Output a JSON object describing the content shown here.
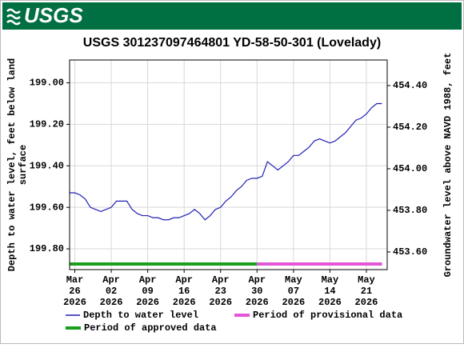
{
  "header": {
    "logo": "USGS"
  },
  "chart_data": {
    "type": "line",
    "title": "USGS 301237097464801 YD-58-50-301 (Lovelady)",
    "ylabel": [
      "Depth to water level, feet below land",
      "surface"
    ],
    "y2label": "Groundwater level above NAVD 1988, feet",
    "y_inverted": true,
    "xlim": [
      "2026-03-25",
      "2026-05-25"
    ],
    "xticks": [
      {
        "value": "2026-03-26",
        "label": [
          "Mar",
          "26",
          "2026"
        ]
      },
      {
        "value": "2026-04-02",
        "label": [
          "Apr",
          "02",
          "2026"
        ]
      },
      {
        "value": "2026-04-09",
        "label": [
          "Apr",
          "09",
          "2026"
        ]
      },
      {
        "value": "2026-04-16",
        "label": [
          "Apr",
          "16",
          "2026"
        ]
      },
      {
        "value": "2026-04-23",
        "label": [
          "Apr",
          "23",
          "2026"
        ]
      },
      {
        "value": "2026-04-30",
        "label": [
          "Apr",
          "30",
          "2026"
        ]
      },
      {
        "value": "2026-05-07",
        "label": [
          "May",
          "07",
          "2026"
        ]
      },
      {
        "value": "2026-05-14",
        "label": [
          "May",
          "14",
          "2026"
        ]
      },
      {
        "value": "2026-05-21",
        "label": [
          "May",
          "21",
          "2026"
        ]
      }
    ],
    "ylim": [
      199.9,
      198.89
    ],
    "yticks": [
      {
        "value": 199,
        "label": "199.00"
      },
      {
        "value": 199.2,
        "label": "199.20"
      },
      {
        "value": 199.4,
        "label": "199.40"
      },
      {
        "value": 199.6,
        "label": "199.60"
      },
      {
        "value": 199.8,
        "label": "199.80"
      }
    ],
    "y2lim": [
      453.515,
      454.523
    ],
    "y2ticks": [
      {
        "value": 454.4,
        "label": "454.40"
      },
      {
        "value": 454.2,
        "label": "454.20"
      },
      {
        "value": 454,
        "label": "454.00"
      },
      {
        "value": 453.8,
        "label": "453.80"
      },
      {
        "value": 453.6,
        "label": "453.60"
      }
    ],
    "grid": true,
    "x": [
      "2026-03-25",
      "2026-03-26",
      "2026-03-27",
      "2026-03-28",
      "2026-03-29",
      "2026-03-30",
      "2026-03-31",
      "2026-04-01",
      "2026-04-02",
      "2026-04-03",
      "2026-04-04",
      "2026-04-05",
      "2026-04-06",
      "2026-04-07",
      "2026-04-08",
      "2026-04-09",
      "2026-04-10",
      "2026-04-11",
      "2026-04-12",
      "2026-04-13",
      "2026-04-14",
      "2026-04-15",
      "2026-04-16",
      "2026-04-17",
      "2026-04-18",
      "2026-04-19",
      "2026-04-20",
      "2026-04-21",
      "2026-04-22",
      "2026-04-23",
      "2026-04-24",
      "2026-04-25",
      "2026-04-26",
      "2026-04-27",
      "2026-04-28",
      "2026-04-29",
      "2026-04-30",
      "2026-05-01",
      "2026-05-02",
      "2026-05-03",
      "2026-05-04",
      "2026-05-05",
      "2026-05-06",
      "2026-05-07",
      "2026-05-08",
      "2026-05-09",
      "2026-05-10",
      "2026-05-11",
      "2026-05-12",
      "2026-05-13",
      "2026-05-14",
      "2026-05-15",
      "2026-05-16",
      "2026-05-17",
      "2026-05-18",
      "2026-05-19",
      "2026-05-20",
      "2026-05-21",
      "2026-05-22",
      "2026-05-23",
      "2026-05-24"
    ],
    "series": [
      {
        "name": "Depth to water level",
        "color": "#1f1fb4",
        "values": [
          199.53,
          199.53,
          199.54,
          199.56,
          199.6,
          199.61,
          199.62,
          199.61,
          199.6,
          199.57,
          199.57,
          199.57,
          199.61,
          199.63,
          199.64,
          199.64,
          199.65,
          199.65,
          199.66,
          199.66,
          199.65,
          199.65,
          199.64,
          199.63,
          199.61,
          199.63,
          199.66,
          199.64,
          199.61,
          199.6,
          199.57,
          199.55,
          199.52,
          199.5,
          199.47,
          199.46,
          199.46,
          199.45,
          199.38,
          199.4,
          199.42,
          199.4,
          199.38,
          199.35,
          199.35,
          199.33,
          199.31,
          199.28,
          199.27,
          199.28,
          199.29,
          199.28,
          199.26,
          199.24,
          199.21,
          199.18,
          199.17,
          199.15,
          199.12,
          199.1,
          199.1
        ]
      }
    ],
    "periods": [
      {
        "name": "Period of approved data",
        "color": "#1aa01a",
        "start": "2026-03-25",
        "end": "2026-04-30"
      },
      {
        "name": "Period of provisional data",
        "color": "#e455d8",
        "start": "2026-04-30",
        "end": "2026-05-24"
      }
    ]
  }
}
